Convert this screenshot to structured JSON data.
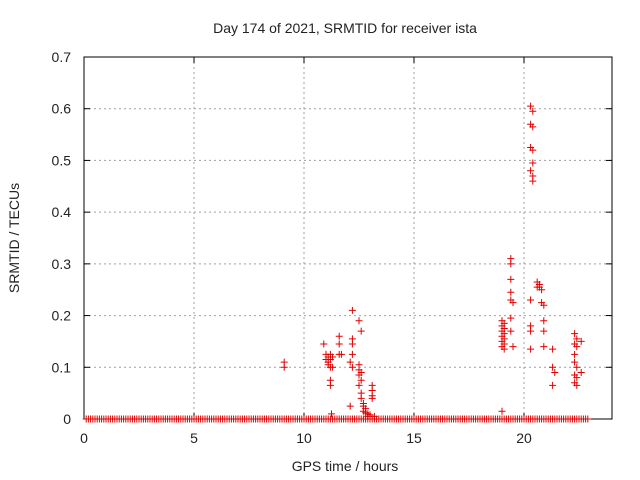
{
  "chart_data": {
    "type": "scatter",
    "title": "Day 174 of 2021, SRMTID for receiver ista",
    "xlabel": "GPS time / hours",
    "ylabel": "SRMTID / TECUs",
    "xlim": [
      0,
      24
    ],
    "ylim": [
      0,
      0.7
    ],
    "xticks": [
      0,
      5,
      10,
      15,
      20
    ],
    "yticks": [
      0,
      0.1,
      0.2,
      0.3,
      0.4,
      0.5,
      0.6,
      0.7
    ],
    "ytick_labels": [
      "0",
      "0.1",
      "0.2",
      "0.3",
      "0.4",
      "0.5",
      "0.6",
      "0.7"
    ],
    "grid": true,
    "marker": "+",
    "color": "#e00000",
    "baseline": {
      "y": 0,
      "x_start": 0.1,
      "x_end": 22.9,
      "step": 0.1
    },
    "points": [
      [
        9.1,
        0.11
      ],
      [
        9.1,
        0.1
      ],
      [
        10.9,
        0.145
      ],
      [
        11.0,
        0.125
      ],
      [
        11.0,
        0.115
      ],
      [
        11.1,
        0.12
      ],
      [
        11.1,
        0.11
      ],
      [
        11.1,
        0.105
      ],
      [
        11.2,
        0.125
      ],
      [
        11.2,
        0.115
      ],
      [
        11.2,
        0.1
      ],
      [
        11.2,
        0.075
      ],
      [
        11.2,
        0.065
      ],
      [
        11.25,
        0.01
      ],
      [
        11.3,
        0.12
      ],
      [
        11.3,
        0.1
      ],
      [
        11.6,
        0.16
      ],
      [
        11.6,
        0.145
      ],
      [
        11.6,
        0.125
      ],
      [
        11.7,
        0.125
      ],
      [
        12.1,
        0.11
      ],
      [
        12.2,
        0.21
      ],
      [
        12.2,
        0.155
      ],
      [
        12.2,
        0.145
      ],
      [
        12.2,
        0.125
      ],
      [
        12.2,
        0.1
      ],
      [
        12.1,
        0.025
      ],
      [
        12.5,
        0.19
      ],
      [
        12.6,
        0.17
      ],
      [
        12.5,
        0.105
      ],
      [
        12.5,
        0.095
      ],
      [
        12.6,
        0.09
      ],
      [
        12.5,
        0.085
      ],
      [
        12.6,
        0.075
      ],
      [
        12.5,
        0.065
      ],
      [
        12.6,
        0.05
      ],
      [
        12.6,
        0.04
      ],
      [
        12.7,
        0.03
      ],
      [
        12.7,
        0.025
      ],
      [
        12.8,
        0.02
      ],
      [
        12.7,
        0.015
      ],
      [
        12.8,
        0.012
      ],
      [
        12.9,
        0.01
      ],
      [
        13.0,
        0.008
      ],
      [
        12.9,
        0.005
      ],
      [
        13.1,
        0.065
      ],
      [
        13.1,
        0.055
      ],
      [
        13.1,
        0.045
      ],
      [
        13.1,
        0.04
      ],
      [
        13.2,
        0.005
      ],
      [
        19.0,
        0.015
      ],
      [
        19.0,
        0.19
      ],
      [
        19.1,
        0.185
      ],
      [
        19.0,
        0.18
      ],
      [
        19.1,
        0.175
      ],
      [
        19.0,
        0.17
      ],
      [
        19.1,
        0.165
      ],
      [
        19.0,
        0.16
      ],
      [
        19.1,
        0.155
      ],
      [
        19.0,
        0.15
      ],
      [
        19.1,
        0.145
      ],
      [
        19.0,
        0.14
      ],
      [
        19.1,
        0.135
      ],
      [
        19.4,
        0.31
      ],
      [
        19.4,
        0.3
      ],
      [
        19.4,
        0.27
      ],
      [
        19.4,
        0.245
      ],
      [
        19.4,
        0.23
      ],
      [
        19.5,
        0.225
      ],
      [
        19.4,
        0.195
      ],
      [
        19.4,
        0.17
      ],
      [
        19.5,
        0.14
      ],
      [
        20.3,
        0.605
      ],
      [
        20.4,
        0.595
      ],
      [
        20.3,
        0.57
      ],
      [
        20.4,
        0.565
      ],
      [
        20.3,
        0.525
      ],
      [
        20.4,
        0.52
      ],
      [
        20.4,
        0.495
      ],
      [
        20.3,
        0.48
      ],
      [
        20.4,
        0.47
      ],
      [
        20.4,
        0.46
      ],
      [
        20.3,
        0.23
      ],
      [
        20.3,
        0.18
      ],
      [
        20.3,
        0.17
      ],
      [
        20.3,
        0.135
      ],
      [
        20.6,
        0.265
      ],
      [
        20.7,
        0.26
      ],
      [
        20.6,
        0.255
      ],
      [
        20.7,
        0.255
      ],
      [
        20.8,
        0.25
      ],
      [
        20.8,
        0.225
      ],
      [
        20.9,
        0.22
      ],
      [
        20.9,
        0.19
      ],
      [
        20.9,
        0.17
      ],
      [
        20.9,
        0.14
      ],
      [
        21.3,
        0.135
      ],
      [
        21.3,
        0.1
      ],
      [
        21.4,
        0.09
      ],
      [
        21.3,
        0.065
      ],
      [
        22.3,
        0.165
      ],
      [
        22.4,
        0.155
      ],
      [
        22.3,
        0.145
      ],
      [
        22.4,
        0.14
      ],
      [
        22.3,
        0.125
      ],
      [
        22.3,
        0.11
      ],
      [
        22.4,
        0.1
      ],
      [
        22.3,
        0.085
      ],
      [
        22.4,
        0.08
      ],
      [
        22.3,
        0.07
      ],
      [
        22.4,
        0.065
      ],
      [
        22.6,
        0.15
      ],
      [
        22.6,
        0.09
      ]
    ]
  }
}
